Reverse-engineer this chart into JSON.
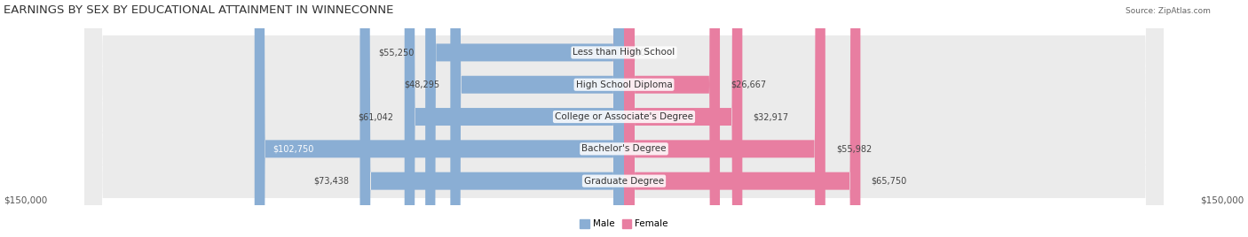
{
  "title": "EARNINGS BY SEX BY EDUCATIONAL ATTAINMENT IN WINNECONNE",
  "source": "Source: ZipAtlas.com",
  "categories": [
    "Less than High School",
    "High School Diploma",
    "College or Associate's Degree",
    "Bachelor's Degree",
    "Graduate Degree"
  ],
  "male_values": [
    55250,
    48295,
    61042,
    102750,
    73438
  ],
  "female_values": [
    0,
    26667,
    32917,
    55982,
    65750
  ],
  "male_color": "#8aaed4",
  "female_color": "#e87ea1",
  "bar_bg_color": "#e8e8e8",
  "row_bg_color": "#f0f0f0",
  "axis_max": 150000,
  "xlabel_left": "$150,000",
  "xlabel_right": "$150,000",
  "legend_male": "Male",
  "legend_female": "Female",
  "title_fontsize": 9.5,
  "label_fontsize": 7.5,
  "category_fontsize": 7.5,
  "value_fontsize": 7.0
}
